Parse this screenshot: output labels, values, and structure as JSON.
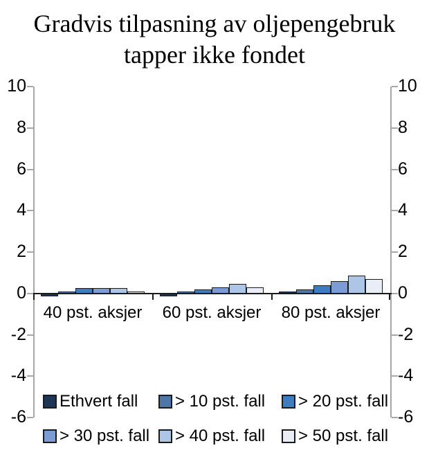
{
  "chart_data": {
    "type": "bar",
    "title": "Gradvis tilpasning av oljepengebruk tapper ikke fondet",
    "categories": [
      "40 pst. aksjer",
      "60 pst. aksjer",
      "80 pst. aksjer"
    ],
    "series": [
      {
        "name": "Ethvert fall",
        "color": "#1F3555",
        "values": [
          -0.15,
          -0.15,
          0.1
        ]
      },
      {
        "name": "> 10 pst. fall",
        "color": "#4E76A8",
        "values": [
          0.1,
          0.1,
          0.2
        ]
      },
      {
        "name": "> 20 pst. fall",
        "color": "#3F7DC2",
        "values": [
          0.25,
          0.2,
          0.4
        ]
      },
      {
        "name": "> 30 pst. fall",
        "color": "#7C9CD6",
        "values": [
          0.25,
          0.3,
          0.6
        ]
      },
      {
        "name": "> 40 pst. fall",
        "color": "#ADC5E7",
        "values": [
          0.25,
          0.45,
          0.85
        ]
      },
      {
        "name": "> 50 pst. fall",
        "color": "#E9EEF6",
        "values": [
          0.1,
          0.3,
          0.7
        ]
      }
    ],
    "ylim": [
      -6,
      10
    ],
    "yticks": [
      "10",
      "8",
      "6",
      "4",
      "2",
      "0",
      "-2",
      "-4",
      "-6"
    ],
    "ytick_values": [
      10,
      8,
      6,
      4,
      2,
      0,
      -2,
      -4,
      -6
    ],
    "grid": false,
    "legend_position": "bottom-inside",
    "xlabel": "",
    "ylabel": "",
    "colors": {
      "value_axis": "#a6a6a6",
      "category_axis": "#1a1a1a",
      "bar_border": "#1a1a1a",
      "text": "#000000",
      "background": "#ffffff"
    }
  }
}
